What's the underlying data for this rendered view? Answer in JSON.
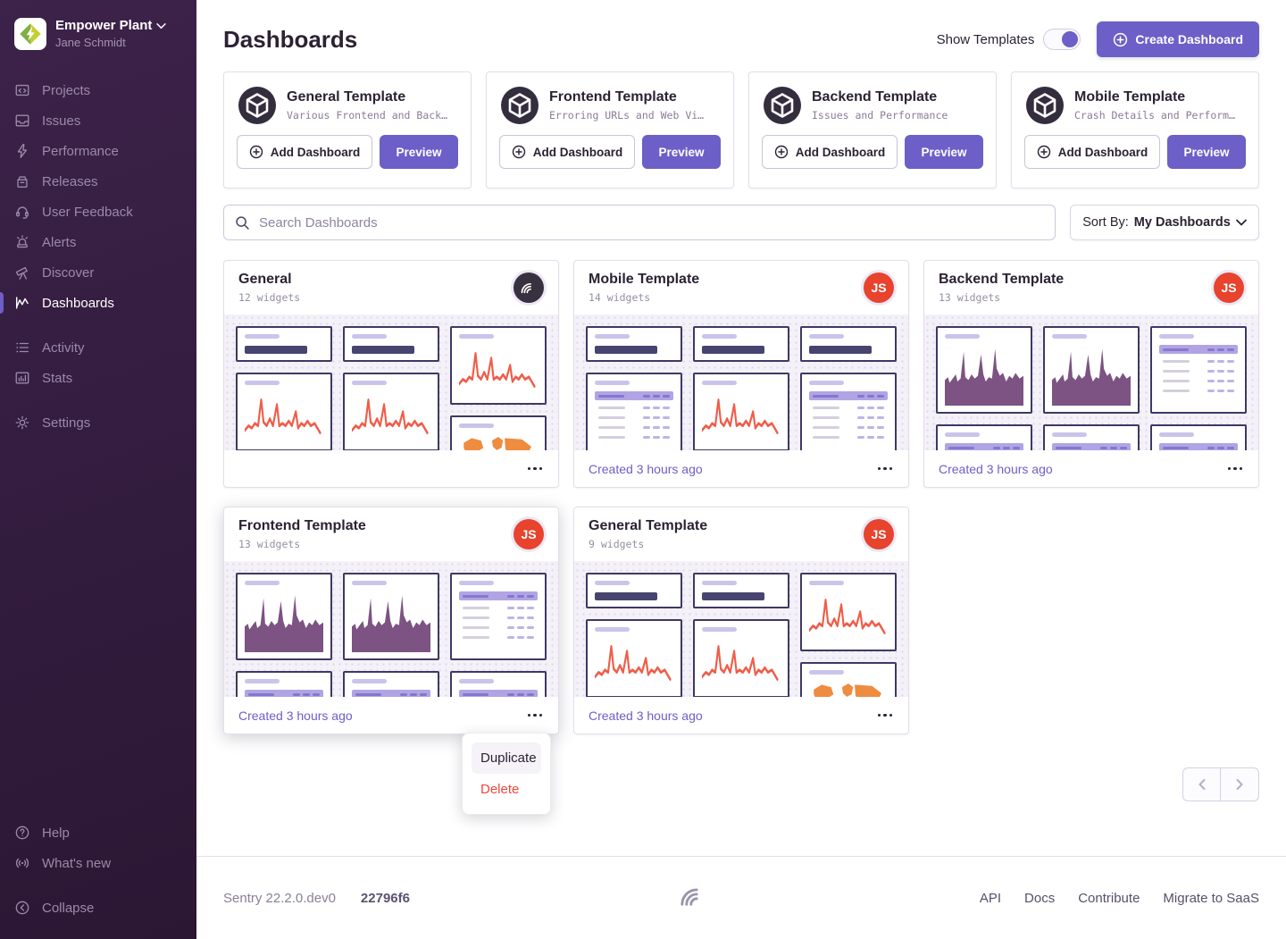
{
  "palette": {
    "accent": "#6c5fc7",
    "sidebar_bg": "#341d40",
    "avatar_red": "#e7432d",
    "delete_red": "#f2453a",
    "chart_line_salmon": "#ef5d49",
    "chart_area_purple": "#7c5382",
    "map_orange": "#ee8c40",
    "widget_border_navy": "#3d3963"
  },
  "sidebar": {
    "org": {
      "name": "Empower Plant",
      "user": "Jane Schmidt"
    },
    "items": [
      "Projects",
      "Issues",
      "Performance",
      "Releases",
      "User Feedback",
      "Alerts",
      "Discover",
      "Dashboards"
    ],
    "active_item": "Dashboards",
    "secondary": [
      "Activity",
      "Stats"
    ],
    "settings": "Settings",
    "help": "Help",
    "whats_new": "What's new",
    "collapse": "Collapse"
  },
  "header": {
    "title": "Dashboards",
    "show_templates": "Show Templates",
    "templates_toggle_on": true,
    "create": "Create Dashboard"
  },
  "template_actions": {
    "add": "Add Dashboard",
    "preview": "Preview"
  },
  "templates": [
    {
      "title": "General Template",
      "description": "Various Frontend and Back…"
    },
    {
      "title": "Frontend Template",
      "description": "Erroring URLs and Web Vi…"
    },
    {
      "title": "Backend Template",
      "description": "Issues and Performance"
    },
    {
      "title": "Mobile Template",
      "description": "Crash Details and Perform…"
    }
  ],
  "search": {
    "placeholder": "Search Dashboards"
  },
  "sort": {
    "label": "Sort By:",
    "value": "My Dashboards"
  },
  "dashboards": [
    {
      "title": "General",
      "widgets": "12 widgets",
      "avatar": "sentry",
      "created": "",
      "preview": [
        [
          "bignumber",
          "line",
          "bignumber"
        ],
        [
          "bignumber",
          "line",
          "bignumber"
        ],
        [
          "line",
          "map"
        ]
      ]
    },
    {
      "title": "Mobile Template",
      "widgets": "14 widgets",
      "avatar": "JS",
      "created": "Created 3 hours ago",
      "preview": [
        [
          "bignumber",
          "table",
          "bignumber"
        ],
        [
          "bignumber",
          "line",
          "bignumber"
        ],
        [
          "bignumber",
          "table",
          "bignumber"
        ]
      ]
    },
    {
      "title": "Backend Template",
      "widgets": "13 widgets",
      "avatar": "JS",
      "created": "Created 3 hours ago",
      "preview": [
        [
          "area",
          "table"
        ],
        [
          "area",
          "table"
        ],
        [
          "table",
          "table"
        ]
      ]
    },
    {
      "title": "Frontend Template",
      "widgets": "13 widgets",
      "avatar": "JS",
      "created": "Created 3 hours ago",
      "preview": [
        [
          "area",
          "table"
        ],
        [
          "area",
          "table"
        ],
        [
          "table",
          "table"
        ]
      ]
    },
    {
      "title": "General Template",
      "widgets": "9 widgets",
      "avatar": "JS",
      "created": "Created 3 hours ago",
      "preview": [
        [
          "bignumber",
          "line",
          "bignumber"
        ],
        [
          "bignumber",
          "line",
          "bignumber"
        ],
        [
          "line",
          "map"
        ]
      ]
    }
  ],
  "context_menu": {
    "duplicate": "Duplicate",
    "delete": "Delete"
  },
  "footer": {
    "version": "Sentry 22.2.0.dev0",
    "build": "22796f6",
    "links": [
      "API",
      "Docs",
      "Contribute",
      "Migrate to SaaS"
    ]
  }
}
